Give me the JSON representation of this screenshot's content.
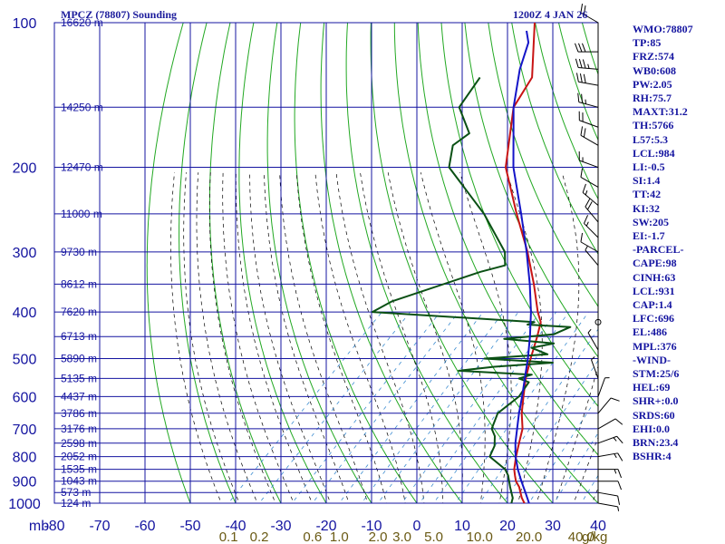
{
  "header": {
    "station": "MPCZ (78807) Sounding",
    "time": "1200Z  4 JAN 26"
  },
  "indices": [
    "WMO:78807",
    "TP:85",
    "FRZ:574",
    "WB0:608",
    "PW:2.05",
    "RH:75.7",
    "MAXT:31.2",
    "TH:5766",
    "L57:5.3",
    "LCL:984",
    "LI:-0.5",
    "SI:1.4",
    "TT:42",
    "KI:32",
    "SW:205",
    "EI:-1.7",
    "-PARCEL-",
    "CAPE:98",
    "CINH:63",
    "LCL:931",
    "CAP:1.4",
    "LFC:696",
    "EL:486",
    "MPL:376",
    "-WIND-",
    "STM:25/6",
    "HEL:69",
    "SHR+:0.0",
    "SRDS:60",
    "EHI:0.0",
    "BRN:23.4",
    "BSHR:4"
  ],
  "colors": {
    "grid": "#1414a0",
    "dry_adiabat": "#22a822",
    "moist_adiabat": "#000000",
    "mixing_ratio": "#3c8cd0",
    "temperature": "#c81414",
    "dewpoint": "#0a5014",
    "parcel": "#1414c8",
    "mixing_label": "#6a5a14"
  },
  "chart_data": {
    "type": "line",
    "title": "MPCZ (78807) Sounding",
    "pressure_unit_label": "mb",
    "mixing_ratio_unit_label": "g/kg",
    "pressure_axis": {
      "ticks": [
        100,
        200,
        300,
        400,
        500,
        600,
        700,
        800,
        900,
        1000
      ],
      "scale": "log",
      "range": [
        100,
        1000
      ]
    },
    "temperature_axis": {
      "ticks": [
        -80,
        -70,
        -60,
        -50,
        -40,
        -30,
        -20,
        -10,
        0,
        10,
        20,
        30,
        40
      ],
      "range": [
        -80,
        40
      ]
    },
    "height_labels": [
      {
        "p": 100,
        "label": "16620 m"
      },
      {
        "p": 150,
        "label": "14250 m"
      },
      {
        "p": 200,
        "label": "12470 m"
      },
      {
        "p": 250,
        "label": "11000 m"
      },
      {
        "p": 300,
        "label": "9730 m"
      },
      {
        "p": 350,
        "label": "8612 m"
      },
      {
        "p": 400,
        "label": "7620 m"
      },
      {
        "p": 450,
        "label": "6713 m"
      },
      {
        "p": 500,
        "label": "5890 m"
      },
      {
        "p": 550,
        "label": "5135 m"
      },
      {
        "p": 600,
        "label": "4437 m"
      },
      {
        "p": 650,
        "label": "3786 m"
      },
      {
        "p": 700,
        "label": "3176 m"
      },
      {
        "p": 750,
        "label": "2598 m"
      },
      {
        "p": 800,
        "label": "2052 m"
      },
      {
        "p": 850,
        "label": "1535 m"
      },
      {
        "p": 900,
        "label": "1043 m"
      },
      {
        "p": 950,
        "label": "573 m"
      },
      {
        "p": 1000,
        "label": "124 m"
      }
    ],
    "mixing_ratio_labels": [
      "0.1",
      "0.2",
      "0.6",
      "1.0",
      "2.0",
      "3.0",
      "5.0",
      "10.0",
      "20.0",
      "40.0"
    ],
    "mixing_ratio_values": [
      0.1,
      0.2,
      0.6,
      1.0,
      2.0,
      3.0,
      5.0,
      10.0,
      20.0,
      40.0
    ],
    "series": [
      {
        "name": "temperature",
        "points": [
          [
            1004,
            24
          ],
          [
            975,
            22
          ],
          [
            950,
            20.5
          ],
          [
            925,
            19
          ],
          [
            900,
            17
          ],
          [
            875,
            15.5
          ],
          [
            850,
            14
          ],
          [
            800,
            11.6
          ],
          [
            750,
            9.3
          ],
          [
            700,
            6.9
          ],
          [
            650,
            3.3
          ],
          [
            600,
            0
          ],
          [
            550,
            -3.5
          ],
          [
            500,
            -6.8
          ],
          [
            450,
            -10.2
          ],
          [
            420,
            -12.6
          ],
          [
            400,
            -15.5
          ],
          [
            350,
            -22.5
          ],
          [
            300,
            -31
          ],
          [
            250,
            -41.8
          ],
          [
            200,
            -54.5
          ],
          [
            150,
            -66
          ],
          [
            130,
            -68.5
          ],
          [
            100,
            -80
          ]
        ]
      },
      {
        "name": "dewpoint",
        "points": [
          [
            1004,
            21
          ],
          [
            975,
            20
          ],
          [
            950,
            18.5
          ],
          [
            925,
            17
          ],
          [
            900,
            15.5
          ],
          [
            875,
            14
          ],
          [
            850,
            12
          ],
          [
            800,
            5.8
          ],
          [
            760,
            4.5
          ],
          [
            725,
            2.4
          ],
          [
            700,
            0.1
          ],
          [
            650,
            -2
          ],
          [
            600,
            -1
          ],
          [
            560,
            -2
          ],
          [
            550,
            -5
          ],
          [
            540,
            -3
          ],
          [
            530,
            -20
          ],
          [
            520,
            -13
          ],
          [
            510,
            -1
          ],
          [
            500,
            -17
          ],
          [
            490,
            -4
          ],
          [
            475,
            -9
          ],
          [
            465,
            -5
          ],
          [
            455,
            -17
          ],
          [
            445,
            -7
          ],
          [
            430,
            -5
          ],
          [
            425,
            -15
          ],
          [
            420,
            -14
          ],
          [
            400,
            -52
          ],
          [
            380,
            -50
          ],
          [
            330,
            -37
          ],
          [
            320,
            -33
          ],
          [
            300,
            -36
          ],
          [
            250,
            -49
          ],
          [
            200,
            -67
          ],
          [
            180,
            -71
          ],
          [
            170,
            -70
          ],
          [
            150,
            -78
          ],
          [
            130,
            -80
          ]
        ]
      },
      {
        "name": "parcel",
        "points": [
          [
            1004,
            25
          ],
          [
            950,
            21.6
          ],
          [
            900,
            18.2
          ],
          [
            850,
            14.8
          ],
          [
            800,
            11.5
          ],
          [
            750,
            8.5
          ],
          [
            700,
            5.7
          ],
          [
            650,
            2.7
          ],
          [
            600,
            -0.3
          ],
          [
            550,
            -3.7
          ],
          [
            500,
            -7.4
          ],
          [
            450,
            -11.8
          ],
          [
            400,
            -17
          ],
          [
            350,
            -23.4
          ],
          [
            300,
            -31.2
          ],
          [
            250,
            -40.8
          ],
          [
            200,
            -52.8
          ],
          [
            150,
            -66
          ],
          [
            125,
            -73
          ],
          [
            110,
            -77
          ],
          [
            104,
            -80
          ]
        ]
      }
    ],
    "wind_barbs": [
      {
        "p": 100,
        "dir": 300,
        "kt": 20
      },
      {
        "p": 115,
        "dir": 270,
        "kt": 30
      },
      {
        "p": 125,
        "dir": 275,
        "kt": 35
      },
      {
        "p": 135,
        "dir": 280,
        "kt": 30
      },
      {
        "p": 150,
        "dir": 285,
        "kt": 25
      },
      {
        "p": 165,
        "dir": 290,
        "kt": 20
      },
      {
        "p": 180,
        "dir": 300,
        "kt": 20
      },
      {
        "p": 200,
        "dir": 290,
        "kt": 15
      },
      {
        "p": 220,
        "dir": 300,
        "kt": 10
      },
      {
        "p": 240,
        "dir": 310,
        "kt": 15
      },
      {
        "p": 260,
        "dir": 320,
        "kt": 20
      },
      {
        "p": 280,
        "dir": 315,
        "kt": 15
      },
      {
        "p": 300,
        "dir": 300,
        "kt": 10
      },
      {
        "p": 320,
        "dir": 320,
        "kt": 5
      },
      {
        "p": 420,
        "dir": 0,
        "kt": 0
      },
      {
        "p": 480,
        "dir": 330,
        "kt": 5
      },
      {
        "p": 550,
        "dir": 340,
        "kt": 5
      },
      {
        "p": 600,
        "dir": 20,
        "kt": 5
      },
      {
        "p": 650,
        "dir": 40,
        "kt": 10
      },
      {
        "p": 700,
        "dir": 60,
        "kt": 10
      },
      {
        "p": 750,
        "dir": 70,
        "kt": 15
      },
      {
        "p": 800,
        "dir": 80,
        "kt": 15
      },
      {
        "p": 850,
        "dir": 90,
        "kt": 15
      },
      {
        "p": 900,
        "dir": 90,
        "kt": 10
      },
      {
        "p": 950,
        "dir": 100,
        "kt": 10
      },
      {
        "p": 1000,
        "dir": 100,
        "kt": 5
      }
    ]
  }
}
